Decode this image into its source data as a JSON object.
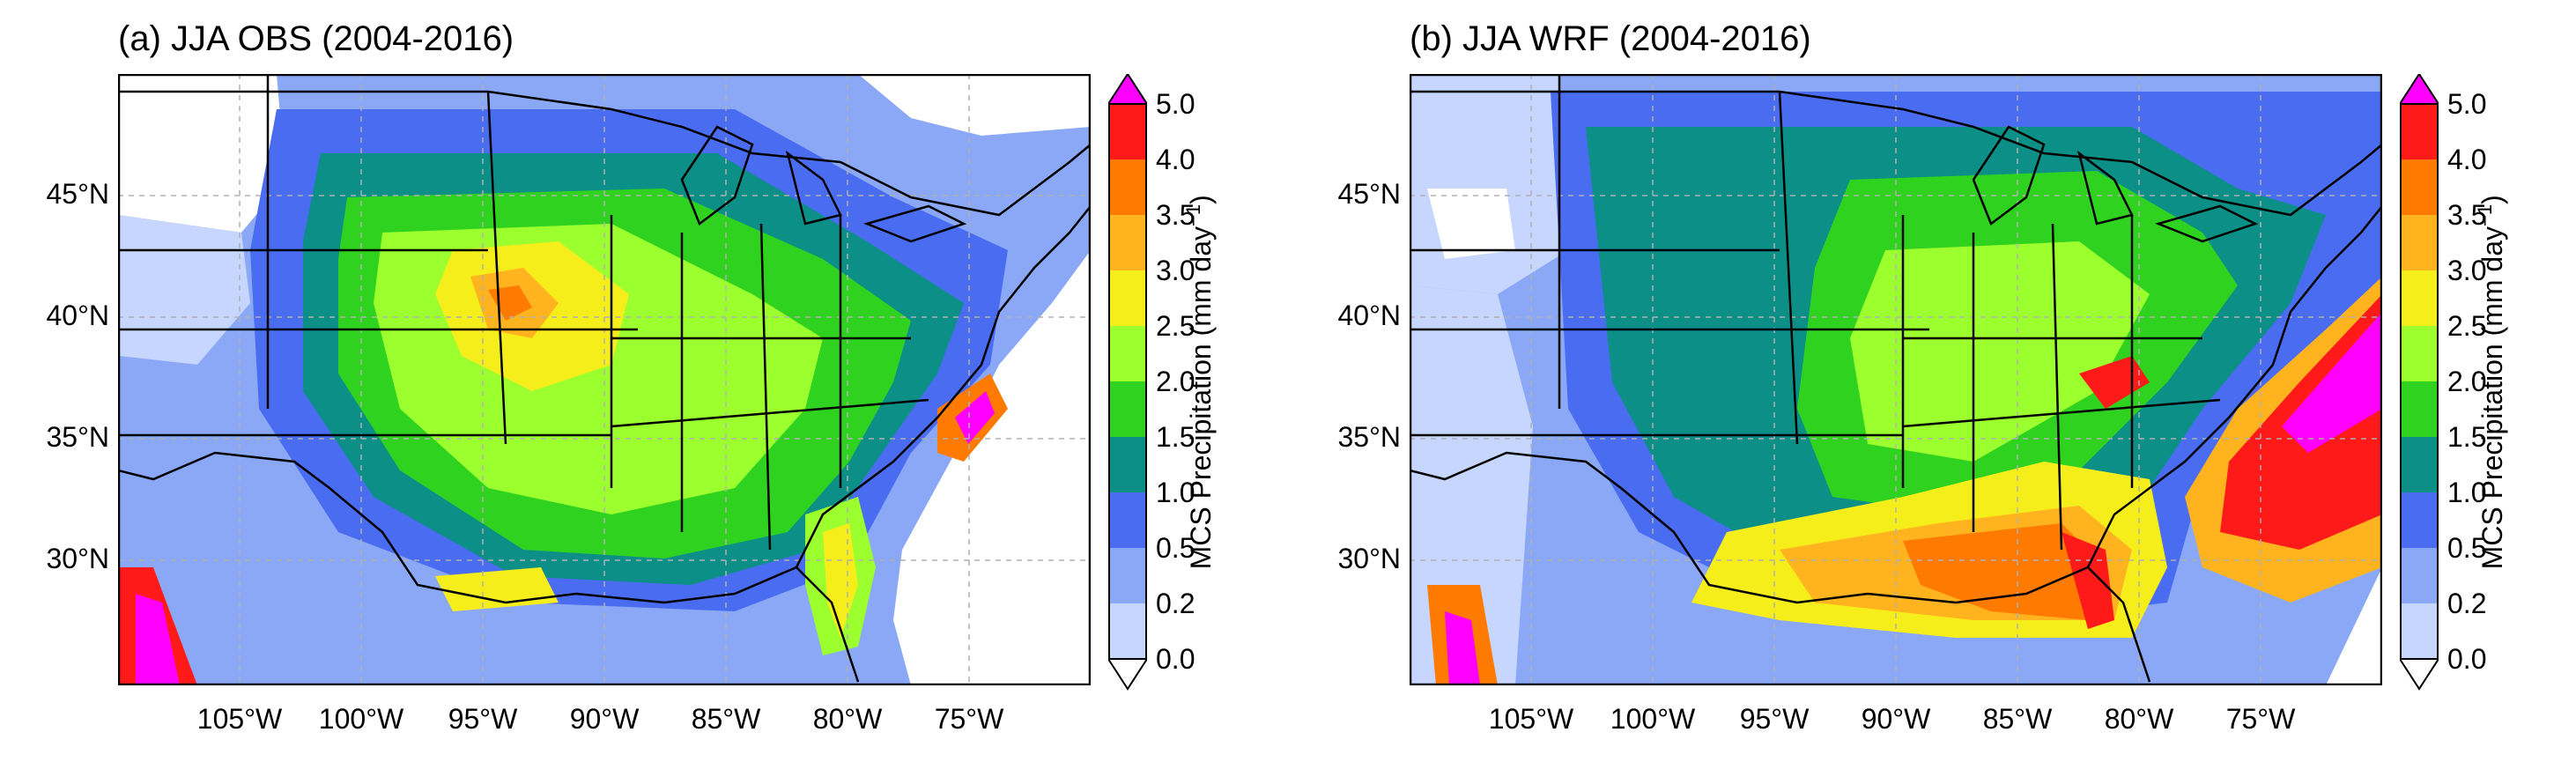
{
  "colors": {
    "levels": [
      "#ffffff",
      "#c6d6ff",
      "#8ba8f6",
      "#4a6cf0",
      "#0b8f87",
      "#2fd21f",
      "#9cff2e",
      "#f5ee1a",
      "#ffb41f",
      "#ff7a00",
      "#ff1a1a",
      "#ff00ff"
    ],
    "ocean": "#ffffff",
    "border": "#000000",
    "grid": "#b0b0b0"
  },
  "axes": {
    "lat_labels": [
      "45°N",
      "40°N",
      "35°N",
      "30°N"
    ],
    "lon_labels": [
      "105°W",
      "100°W",
      "95°W",
      "90°W",
      "85°W",
      "80°W",
      "75°W"
    ]
  },
  "colorbar": {
    "label_main": "MCS Precipitation (mm day",
    "label_sup": "−1",
    "label_end": ")",
    "ticks": [
      "0.0",
      "0.2",
      "0.5",
      "1.0",
      "1.5",
      "2.0",
      "2.5",
      "3.0",
      "3.5",
      "4.0",
      "5.0"
    ]
  },
  "panels": [
    {
      "title": "(a) JJA OBS (2004-2016)"
    },
    {
      "title": "(b) JJA WRF (2004-2016)"
    }
  ]
}
